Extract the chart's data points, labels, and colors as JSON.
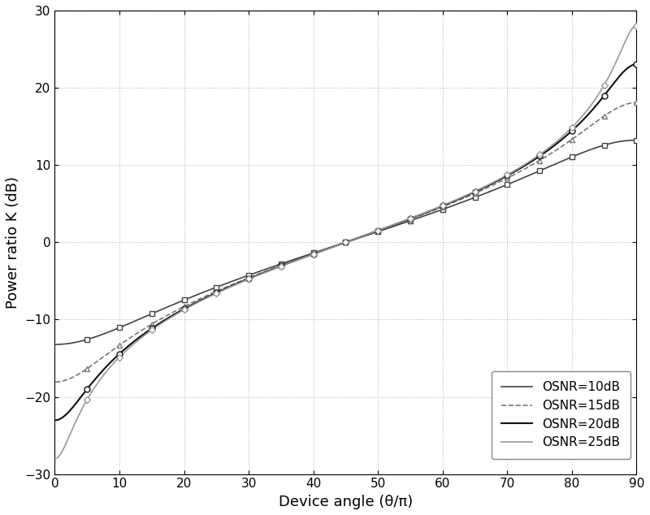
{
  "title": "",
  "xlabel": "Device angle (θ/π)",
  "ylabel": "Power ratio K (dB)",
  "xlim": [
    0,
    90
  ],
  "ylim": [
    -30,
    30
  ],
  "xticks": [
    0,
    10,
    20,
    30,
    40,
    50,
    60,
    70,
    80,
    90
  ],
  "yticks": [
    -30,
    -20,
    -10,
    0,
    10,
    20,
    30
  ],
  "series": [
    {
      "label": "OSNR=10dB",
      "osnr_db": 10,
      "color": "#444444",
      "linestyle": "-",
      "marker": "s",
      "markersize": 5,
      "linewidth": 1.2,
      "markevery": 3
    },
    {
      "label": "OSNR=15dB",
      "osnr_db": 15,
      "color": "#777777",
      "linestyle": "--",
      "marker": "^",
      "markersize": 5,
      "linewidth": 1.2,
      "markevery": 3
    },
    {
      "label": "OSNR=20dB",
      "osnr_db": 20,
      "color": "#111111",
      "linestyle": "-",
      "marker": "o",
      "markersize": 5,
      "linewidth": 1.5,
      "markevery": 3
    },
    {
      "label": "OSNR=25dB",
      "osnr_db": 25,
      "color": "#999999",
      "linestyle": "-",
      "marker": "D",
      "markersize": 4,
      "linewidth": 1.2,
      "markevery": 3
    }
  ],
  "background_color": "#ffffff",
  "n_angles": 200
}
